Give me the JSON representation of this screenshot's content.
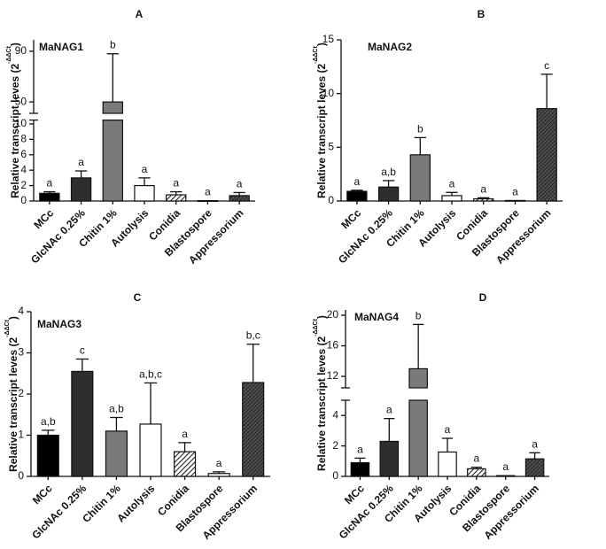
{
  "chart_data": [
    {
      "type": "bar",
      "panel": "A",
      "title": "MaNAG1",
      "ylabel": {
        "text": "Relative transcript leves (2",
        "sup": "-ΔΔCt",
        "end": ")"
      },
      "categories": [
        "MCc",
        "GlcNAc 0.25%",
        "Chitin 1%",
        "Autolysis",
        "Conidia",
        "Blastospore",
        "Appressorium"
      ],
      "values": [
        1.0,
        3.0,
        50,
        2.0,
        0.8,
        0.05,
        0.7
      ],
      "errors": [
        0.2,
        0.9,
        38,
        1.0,
        0.4,
        0,
        0.4
      ],
      "annotations": [
        "a",
        "a",
        "b",
        "a",
        "a",
        "a",
        "a"
      ],
      "bar_styles": [
        "#000000",
        "#2e2e2e",
        "#7a7a7a",
        "#ffffff",
        "hatch",
        "#ffffff",
        "crosshatch"
      ],
      "ysegments": [
        {
          "ylim": [
            0,
            10.5
          ],
          "yticks": [
            0,
            2,
            4,
            6,
            8,
            10
          ]
        },
        {
          "ylim": [
            41,
            99
          ],
          "yticks": [
            50,
            90
          ]
        }
      ]
    },
    {
      "type": "bar",
      "panel": "B",
      "title": "MaNAG2",
      "ylabel": {
        "text": "Relative transcript leves (2",
        "sup": "-ΔΔCt",
        "end": ")"
      },
      "categories": [
        "MCc",
        "GlcNAc 0.25%",
        "Chitin 1%",
        "Autolysis",
        "Conidia",
        "Blastospore",
        "Appressorium"
      ],
      "values": [
        0.9,
        1.3,
        4.3,
        0.5,
        0.2,
        0.05,
        8.6
      ],
      "errors": [
        0.1,
        0.6,
        1.6,
        0.3,
        0.1,
        0,
        3.2
      ],
      "annotations": [
        "a",
        "a,b",
        "b",
        "a",
        "a",
        "a",
        "c"
      ],
      "bar_styles": [
        "#000000",
        "#2e2e2e",
        "#7a7a7a",
        "#ffffff",
        "hatch",
        "#ffffff",
        "crosshatch"
      ],
      "ysegments": [
        {
          "ylim": [
            0,
            15
          ],
          "yticks": [
            0,
            5,
            10,
            15
          ]
        }
      ]
    },
    {
      "type": "bar",
      "panel": "C",
      "title": "MaNAG3",
      "ylabel": {
        "text": "Relative transcript leves (2",
        "sup": "-ΔΔCt",
        "end": ")"
      },
      "categories": [
        "MCc",
        "GlcNAc 0.25%",
        "Chitin 1%",
        "Autolysis",
        "Conidia",
        "Blastospore",
        "Appressorium"
      ],
      "values": [
        1.0,
        2.55,
        1.1,
        1.27,
        0.6,
        0.07,
        2.28
      ],
      "errors": [
        0.12,
        0.3,
        0.33,
        1.0,
        0.22,
        0.04,
        0.93
      ],
      "annotations": [
        "a,b",
        "c",
        "a,b",
        "a,b,c",
        "a",
        "a",
        "b,c"
      ],
      "bar_styles": [
        "#000000",
        "#2e2e2e",
        "#7a7a7a",
        "#ffffff",
        "hatch",
        "#ffffff",
        "crosshatch"
      ],
      "ysegments": [
        {
          "ylim": [
            0,
            4
          ],
          "yticks": [
            0,
            1,
            2,
            3,
            4
          ]
        }
      ]
    },
    {
      "type": "bar",
      "panel": "D",
      "title": "MaNAG4",
      "ylabel": {
        "text": "Relative transcript leves (2",
        "sup": "-ΔΔCt",
        "end": ")"
      },
      "categories": [
        "MCc",
        "GlcNAc 0.25%",
        "Chitin 1%",
        "Autolysis",
        "Conidia",
        "Blastospore",
        "Appressorium"
      ],
      "values": [
        0.9,
        2.3,
        13,
        1.6,
        0.5,
        0.05,
        1.15
      ],
      "errors": [
        0.3,
        1.5,
        5.8,
        0.9,
        0.1,
        0,
        0.4
      ],
      "annotations": [
        "a",
        "a",
        "b",
        "a",
        "a",
        "a",
        "a"
      ],
      "bar_styles": [
        "#000000",
        "#2e2e2e",
        "#7a7a7a",
        "#ffffff",
        "hatch",
        "#ffffff",
        "crosshatch"
      ],
      "ysegments": [
        {
          "ylim": [
            0,
            5
          ],
          "yticks": [
            0,
            2,
            4
          ]
        },
        {
          "ylim": [
            10.5,
            20.7
          ],
          "yticks": [
            12,
            16,
            20
          ]
        }
      ]
    }
  ]
}
